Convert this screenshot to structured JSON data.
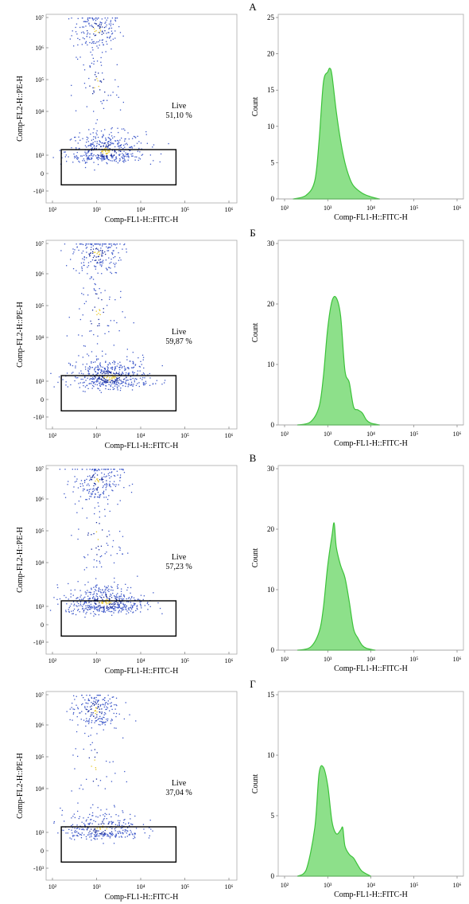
{
  "figure": {
    "panel_labels": [
      "А",
      "Б",
      "В",
      "Г"
    ]
  },
  "chart_data": [
    {
      "panel": "А",
      "charts": [
        {
          "type": "scatter",
          "xlabel": "Comp-FL1-H::FITC-H",
          "ylabel": "Comp-FL2-H::PE-H",
          "xticks": [
            "10²",
            "10³",
            "10⁴",
            "10⁵",
            "10⁶"
          ],
          "yticks": [
            "-10³",
            "0",
            "10³",
            "10⁴",
            "10⁵",
            "10⁶",
            "10⁷"
          ],
          "gate": {
            "name": "Live",
            "percent": "51,10 %"
          },
          "clusters": [
            {
              "x": 3.0,
              "y": 5.6,
              "n": 160
            },
            {
              "x": 3.2,
              "y": 2.1,
              "n": 420
            },
            {
              "x": 3.0,
              "y": 3.8,
              "n": 70
            }
          ]
        },
        {
          "type": "area",
          "xlabel": "Comp-FL1-H::FITC-H",
          "ylabel": "Count",
          "xticks": [
            "10²",
            "10³",
            "10⁴",
            "10⁵",
            "10⁶"
          ],
          "yticks": [
            "0",
            "5",
            "10",
            "15",
            "20",
            "25"
          ],
          "ylim": [
            0,
            25
          ],
          "x": [
            2.2,
            2.5,
            2.7,
            2.8,
            2.9,
            3.0,
            3.05,
            3.1,
            3.2,
            3.3,
            3.4,
            3.5,
            3.6,
            3.8,
            4.0,
            4.2
          ],
          "values": [
            0,
            0.5,
            2.5,
            8,
            16,
            17.5,
            18,
            17,
            12,
            8,
            5,
            3,
            1.8,
            0.8,
            0.3,
            0
          ]
        }
      ]
    },
    {
      "panel": "Б",
      "charts": [
        {
          "type": "scatter",
          "xlabel": "Comp-FL1-H::FITC-H",
          "ylabel": "Comp-FL2-H::PE-H",
          "xticks": [
            "10²",
            "10³",
            "10⁴",
            "10⁵",
            "10⁶"
          ],
          "yticks": [
            "-10³",
            "0",
            "10³",
            "10⁴",
            "10⁵",
            "10⁶",
            "10⁷"
          ],
          "gate": {
            "name": "Live",
            "percent": "59,87 %"
          },
          "clusters": [
            {
              "x": 3.0,
              "y": 5.7,
              "n": 180
            },
            {
              "x": 3.3,
              "y": 2.1,
              "n": 480
            },
            {
              "x": 3.0,
              "y": 3.8,
              "n": 80
            }
          ]
        },
        {
          "type": "area",
          "xlabel": "Comp-FL1-H::FITC-H",
          "ylabel": "Count",
          "xticks": [
            "10²",
            "10³",
            "10⁴",
            "10⁵",
            "10⁶"
          ],
          "yticks": [
            "0",
            "10",
            "20",
            "30"
          ],
          "ylim": [
            0,
            30
          ],
          "x": [
            2.3,
            2.6,
            2.8,
            2.9,
            3.0,
            3.1,
            3.2,
            3.3,
            3.4,
            3.5,
            3.6,
            3.7,
            3.8,
            3.9,
            4.0,
            4.2
          ],
          "values": [
            0,
            0.5,
            3,
            8,
            16,
            20.5,
            21,
            18,
            9,
            7,
            3,
            2.5,
            2,
            0.8,
            0.3,
            0
          ]
        }
      ]
    },
    {
      "panel": "В",
      "charts": [
        {
          "type": "scatter",
          "xlabel": "Comp-FL1-H::FITC-H",
          "ylabel": "Comp-FL2-H::PE-H",
          "xticks": [
            "10²",
            "10³",
            "10⁴",
            "10⁵",
            "10⁶"
          ],
          "yticks": [
            "-10³",
            "0",
            "10³",
            "10⁴",
            "10⁵",
            "10⁶",
            "10⁷"
          ],
          "gate": {
            "name": "Live",
            "percent": "57,23 %"
          },
          "clusters": [
            {
              "x": 3.0,
              "y": 5.6,
              "n": 190
            },
            {
              "x": 3.2,
              "y": 2.1,
              "n": 470
            },
            {
              "x": 3.0,
              "y": 3.8,
              "n": 80
            }
          ]
        },
        {
          "type": "area",
          "xlabel": "Comp-FL1-H::FITC-H",
          "ylabel": "Count",
          "xticks": [
            "10²",
            "10³",
            "10⁴",
            "10⁵",
            "10⁶"
          ],
          "yticks": [
            "0",
            "10",
            "20",
            "30"
          ],
          "ylim": [
            0,
            30
          ],
          "x": [
            2.3,
            2.6,
            2.8,
            2.9,
            3.0,
            3.1,
            3.15,
            3.2,
            3.3,
            3.4,
            3.5,
            3.6,
            3.7,
            3.8,
            3.9,
            4.1
          ],
          "values": [
            0,
            0.5,
            3,
            7,
            14,
            19,
            21,
            17,
            14,
            12,
            8,
            3.5,
            2,
            0.8,
            0.3,
            0
          ]
        }
      ]
    },
    {
      "panel": "Г",
      "charts": [
        {
          "type": "scatter",
          "xlabel": "Comp-FL1-H::FITC-H",
          "ylabel": "Comp-FL2-H::PE-H",
          "xticks": [
            "10²",
            "10³",
            "10⁴",
            "10⁵",
            "10⁶"
          ],
          "yticks": [
            "-10³",
            "0",
            "10³",
            "10⁴",
            "10⁵",
            "10⁶",
            "10⁷"
          ],
          "gate": {
            "name": "Live",
            "percent": "37,04 %"
          },
          "clusters": [
            {
              "x": 2.95,
              "y": 5.5,
              "n": 200
            },
            {
              "x": 3.1,
              "y": 2.1,
              "n": 300
            },
            {
              "x": 2.95,
              "y": 3.7,
              "n": 40
            }
          ]
        },
        {
          "type": "area",
          "xlabel": "Comp-FL1-H::FITC-H",
          "ylabel": "Count",
          "xticks": [
            "10²",
            "10³",
            "10⁴",
            "10⁵",
            "10⁶"
          ],
          "yticks": [
            "0",
            "5",
            "10",
            "15"
          ],
          "ylim": [
            0,
            15
          ],
          "x": [
            2.3,
            2.5,
            2.7,
            2.8,
            2.9,
            3.0,
            3.1,
            3.2,
            3.3,
            3.35,
            3.4,
            3.5,
            3.6,
            3.7,
            3.8,
            4.0
          ],
          "values": [
            0,
            0.5,
            4,
            8.5,
            9,
            7.5,
            4.5,
            3.5,
            3.8,
            4,
            2.5,
            1.8,
            1.5,
            0.9,
            0.4,
            0
          ]
        }
      ]
    }
  ]
}
